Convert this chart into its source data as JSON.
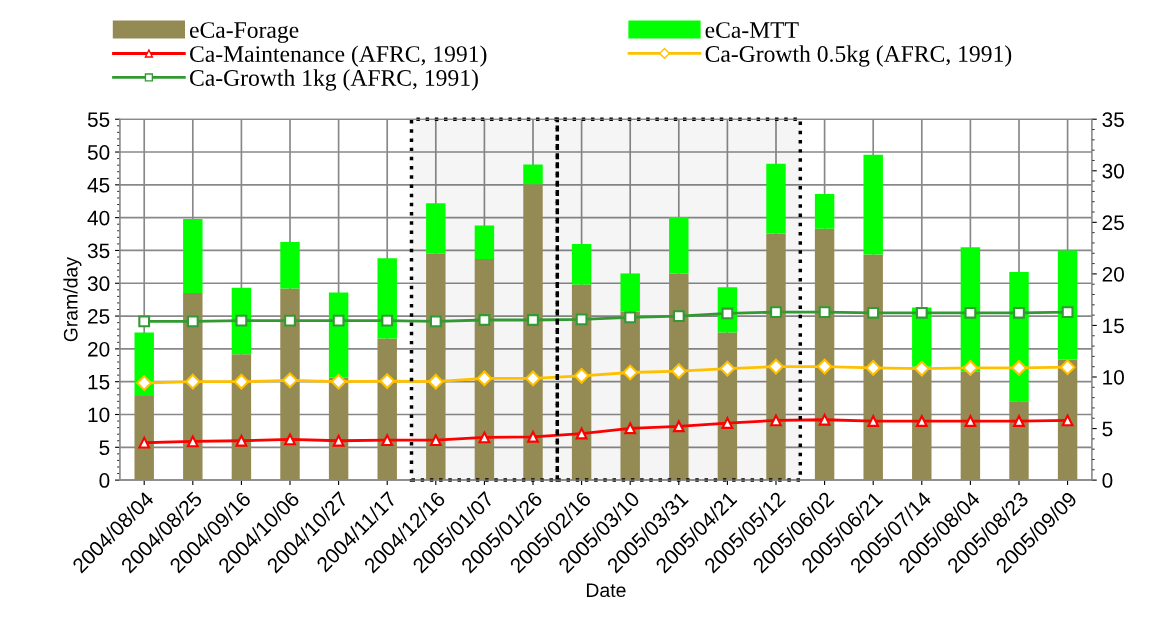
{
  "chart_data": {
    "type": "bar",
    "stacked": true,
    "xlabel": "Date",
    "ylabel": "Gram/day",
    "categories": [
      "2004/08/04",
      "2004/08/25",
      "2004/09/16",
      "2004/10/06",
      "2004/10/27",
      "2004/11/17",
      "2004/12/16",
      "2005/01/07",
      "2005/01/26",
      "2005/02/16",
      "2005/03/10",
      "2005/03/31",
      "2005/04/21",
      "2005/05/12",
      "2005/06/02",
      "2005/06/21",
      "2005/07/14",
      "2005/08/04",
      "2005/08/23",
      "2005/09/09"
    ],
    "series": [
      {
        "name": "eCa-Forage",
        "color": "#948a54",
        "values": [
          12.8,
          28.5,
          19.2,
          29.2,
          15.6,
          21.6,
          34.5,
          33.7,
          45.1,
          29.8,
          25.7,
          31.5,
          22.5,
          37.6,
          38.3,
          34.4,
          17.3,
          16.5,
          12.0,
          18.4
        ]
      },
      {
        "name": "eCa-MTT",
        "color": "#00ff00",
        "values": [
          9.7,
          11.3,
          10.1,
          7.1,
          13.0,
          12.2,
          7.7,
          5.1,
          3.0,
          6.2,
          5.8,
          8.6,
          6.9,
          10.6,
          5.3,
          15.2,
          9.0,
          19.0,
          19.7,
          16.6
        ]
      },
      {
        "name": "Ca-Maintenance (AFRC, 1991)",
        "type": "line",
        "marker": "triangle",
        "color": "#ff0000",
        "values": [
          5.7,
          5.9,
          6.0,
          6.2,
          6.0,
          6.1,
          6.1,
          6.5,
          6.6,
          7.1,
          7.9,
          8.2,
          8.7,
          9.1,
          9.2,
          9.0,
          9.0,
          9.0,
          9.0,
          9.1
        ]
      },
      {
        "name": "Ca-Growth 0.5kg (AFRC, 1991)",
        "type": "line",
        "marker": "diamond",
        "color": "#ffc000",
        "values": [
          14.8,
          15.0,
          15.0,
          15.2,
          15.0,
          15.1,
          15.0,
          15.5,
          15.5,
          15.9,
          16.4,
          16.6,
          17.0,
          17.3,
          17.3,
          17.1,
          17.0,
          17.1,
          17.1,
          17.2
        ]
      },
      {
        "name": "Ca-Growth 1kg (AFRC, 1991)",
        "type": "line",
        "marker": "square",
        "color": "#339933",
        "values": [
          24.2,
          24.2,
          24.3,
          24.3,
          24.3,
          24.3,
          24.2,
          24.4,
          24.4,
          24.5,
          24.8,
          25.0,
          25.4,
          25.6,
          25.6,
          25.5,
          25.5,
          25.5,
          25.5,
          25.6
        ]
      }
    ],
    "ylim": [
      0,
      55
    ],
    "yticks": [
      0,
      5,
      10,
      15,
      20,
      25,
      30,
      35,
      40,
      45,
      50,
      55
    ],
    "y2lim": [
      0,
      35
    ],
    "y2ticks": [
      0,
      5,
      10,
      15,
      20,
      25,
      30,
      35
    ],
    "bands": [
      {
        "axis": "x",
        "from": "2004/12/16",
        "to": "2005/01/26",
        "color": "#000000"
      },
      {
        "axis": "x",
        "from": "2005/02/16",
        "to": "2005/05/12",
        "color": "#000000"
      }
    ],
    "grid": true,
    "legend": "top"
  }
}
